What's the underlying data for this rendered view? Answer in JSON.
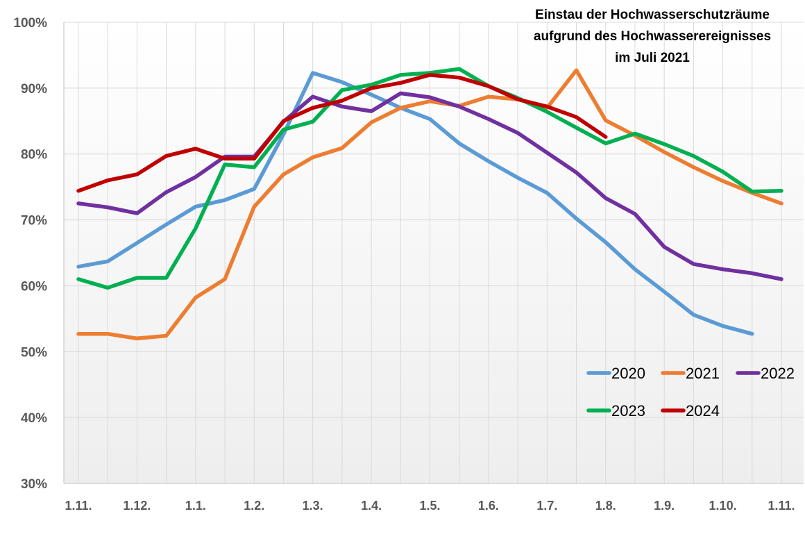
{
  "chart_data": {
    "type": "line",
    "title_lines": [
      "Einstau der Hochwasserschutzräume",
      "aufgrund des Hochwasserereignisses",
      "im Juli 2021"
    ],
    "xlabel": "",
    "ylabel": "",
    "ylim": [
      30,
      100
    ],
    "ytick_step": 10,
    "ytick_labels": [
      "30%",
      "40%",
      "50%",
      "60%",
      "70%",
      "80%",
      "90%",
      "100%"
    ],
    "x_tick_labels": [
      "1.11.",
      "1.12.",
      "1.1.",
      "1.2.",
      "1.3.",
      "1.4.",
      "1.5.",
      "1.6.",
      "1.7.",
      "1.8.",
      "1.9.",
      "1.10.",
      "1.11."
    ],
    "grid": true,
    "background": "gradient white to light grey",
    "legend_position": "bottom-right",
    "series": [
      {
        "name": "2020",
        "color": "#5B9BD5",
        "values": [
          62.9,
          63.7,
          66.5,
          69.3,
          72.0,
          73.0,
          74.7,
          83.0,
          92.3,
          90.9,
          89.0,
          87.0,
          85.3,
          81.6,
          78.9,
          76.4,
          74.1,
          70.2,
          66.6,
          62.5,
          59.1,
          55.6,
          53.9,
          52.7
        ]
      },
      {
        "name": "2021",
        "color": "#ED7D31",
        "values": [
          52.7,
          52.7,
          52.0,
          52.4,
          58.2,
          61.0,
          72.0,
          76.9,
          79.5,
          80.9,
          84.8,
          87.0,
          88.0,
          87.3,
          88.7,
          88.3,
          87.0,
          92.7,
          85.1,
          82.8,
          80.3,
          78.0,
          75.9,
          74.1,
          72.5
        ]
      },
      {
        "name": "2022",
        "color": "#7030A0",
        "values": [
          72.5,
          71.9,
          71.0,
          74.2,
          76.5,
          79.6,
          79.6,
          84.9,
          88.7,
          87.2,
          86.5,
          89.2,
          88.6,
          87.2,
          85.3,
          83.2,
          80.2,
          77.2,
          73.3,
          70.9,
          65.9,
          63.3,
          62.5,
          61.9,
          61.0
        ]
      },
      {
        "name": "2023",
        "color": "#00B050",
        "values": [
          61.0,
          59.7,
          61.2,
          61.2,
          68.7,
          78.4,
          78.0,
          83.7,
          84.9,
          89.7,
          90.5,
          92.0,
          92.3,
          92.9,
          90.3,
          88.5,
          86.4,
          84.0,
          81.6,
          83.1,
          81.5,
          79.7,
          77.3,
          74.3,
          74.4
        ]
      },
      {
        "name": "2024",
        "color": "#C00000",
        "values": [
          74.4,
          76.0,
          76.9,
          79.7,
          80.8,
          79.3,
          79.3,
          85.0,
          87.0,
          88.1,
          90.0,
          90.8,
          92.0,
          91.6,
          90.3,
          88.3,
          87.2,
          85.6,
          82.6
        ]
      }
    ]
  }
}
